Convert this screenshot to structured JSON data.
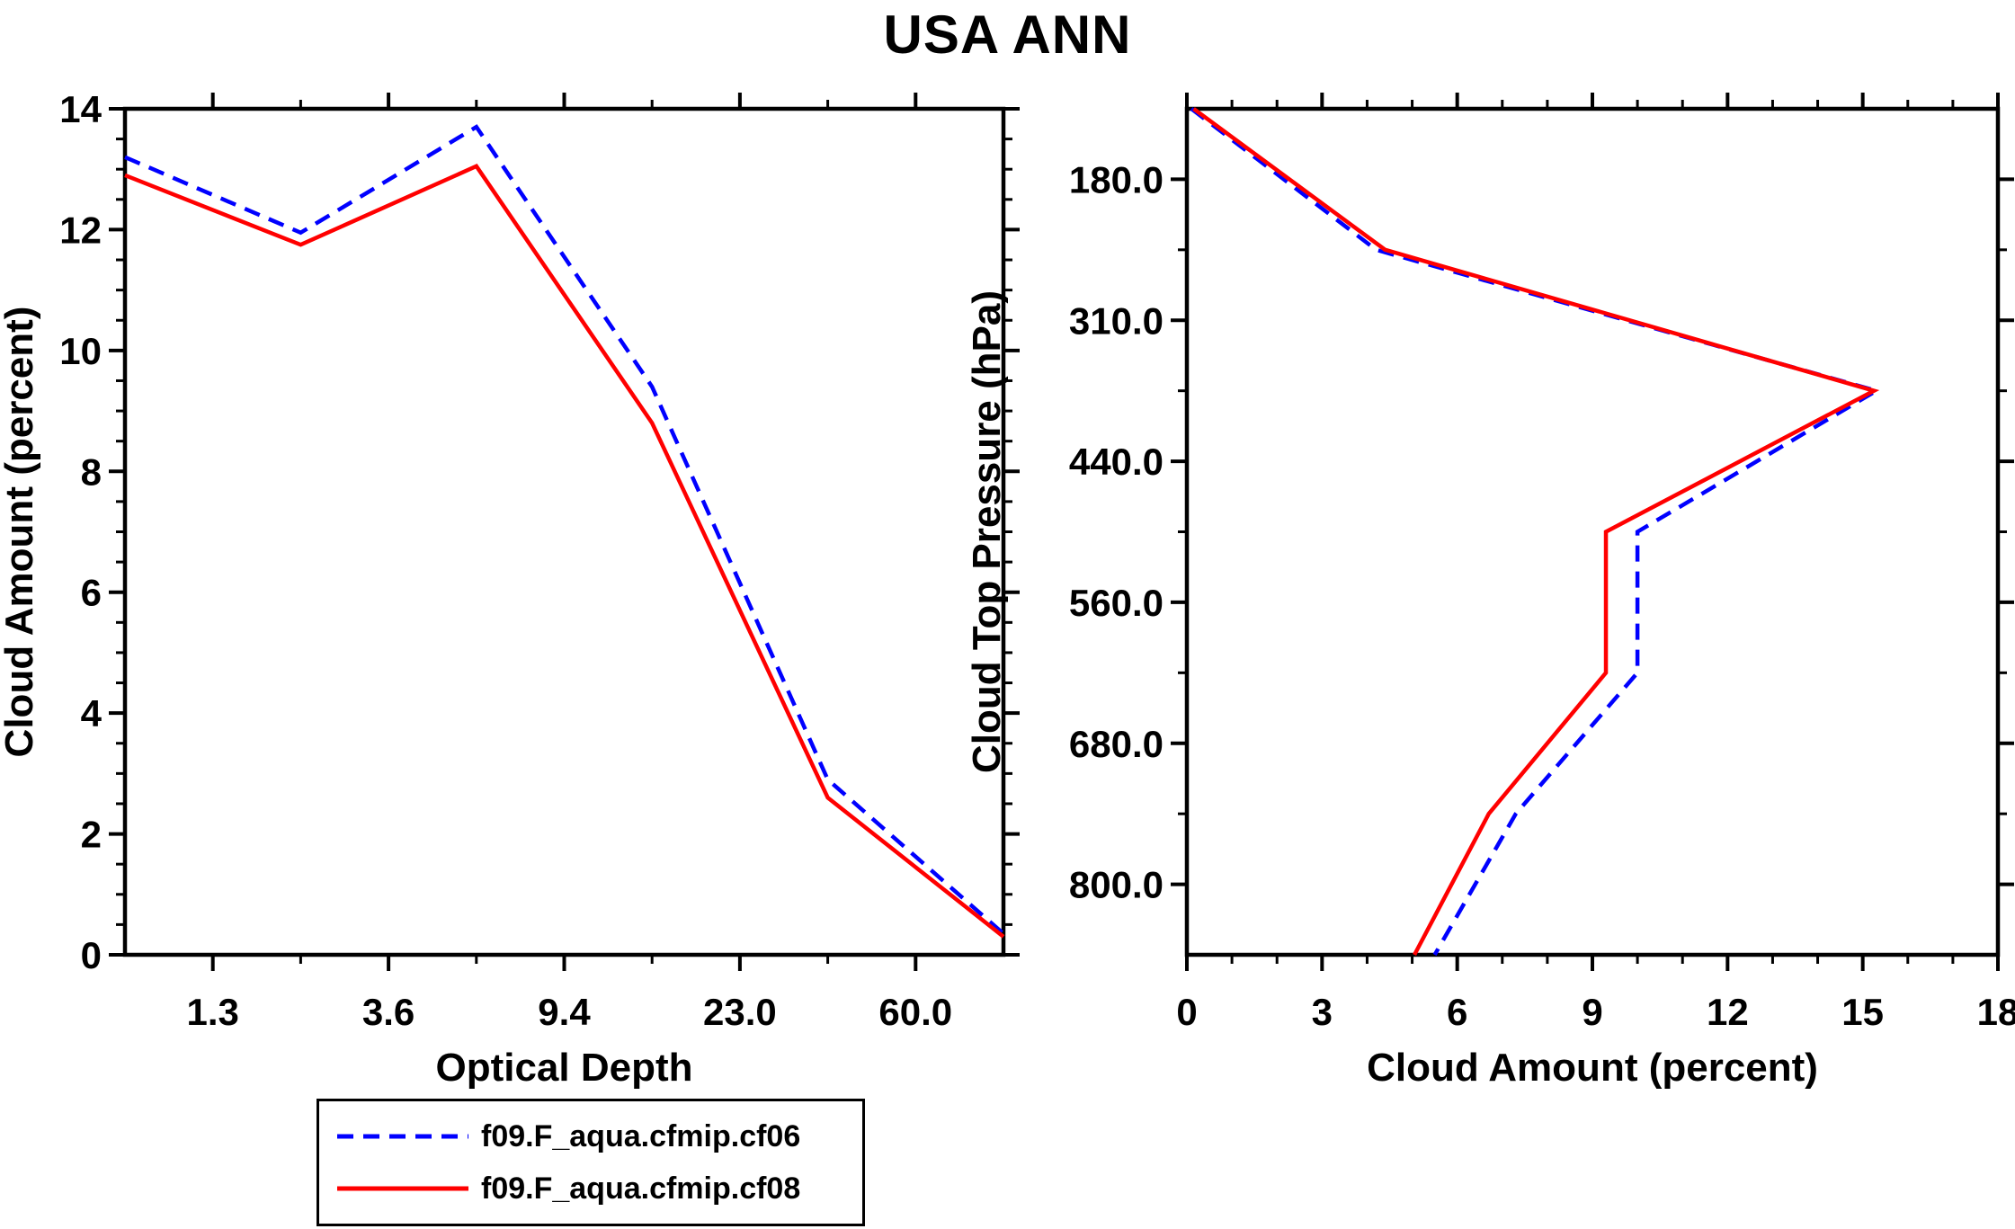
{
  "title": "USA ANN",
  "colors": {
    "background": "#ffffff",
    "axis": "#000000",
    "series_cf06": "#0000ff",
    "series_cf08": "#ff0000"
  },
  "legend": {
    "items": [
      {
        "label": "f09.F_aqua.cfmip.cf06",
        "color": "#0000ff",
        "style": "dashed"
      },
      {
        "label": "f09.F_aqua.cfmip.cf08",
        "color": "#ff0000",
        "style": "solid"
      }
    ]
  },
  "chart_data": [
    {
      "type": "line",
      "panel": "left",
      "title": "",
      "xlabel": "Optical Depth",
      "ylabel": "Cloud Amount (percent)",
      "x_tick_labels": [
        "1.3",
        "3.6",
        "9.4",
        "23.0",
        "60.0"
      ],
      "x_axis_note": "optical-depth bin boundaries as ticks; 6 data points at bin centers, evenly spaced across axis",
      "ylim": [
        0,
        14
      ],
      "y_major_ticks": [
        0,
        2,
        4,
        6,
        8,
        10,
        12,
        14
      ],
      "y_minor_step": 0.5,
      "grid": false,
      "legend_position": "below-left",
      "series": [
        {
          "name": "f09.F_aqua.cfmip.cf06",
          "color": "#0000ff",
          "style": "dashed",
          "values": [
            13.2,
            11.95,
            13.7,
            9.4,
            2.9,
            0.35
          ]
        },
        {
          "name": "f09.F_aqua.cfmip.cf08",
          "color": "#ff0000",
          "style": "solid",
          "values": [
            12.9,
            11.75,
            13.05,
            8.8,
            2.6,
            0.3
          ]
        }
      ]
    },
    {
      "type": "line",
      "panel": "right",
      "title": "",
      "xlabel": "Cloud Amount (percent)",
      "ylabel": "Cloud Top Pressure (hPa)",
      "xlim": [
        0,
        18
      ],
      "x_major_ticks": [
        0,
        3,
        6,
        9,
        12,
        15,
        18
      ],
      "x_minor_step": 1,
      "y_tick_labels": [
        "180.0",
        "310.0",
        "440.0",
        "560.0",
        "680.0",
        "800.0"
      ],
      "y_axis_note": "pressure increases downward; 7 data points at pressure-bin centers, evenly spaced top to bottom; ticks at bin boundaries",
      "pressure_bin_centers": [
        90,
        245,
        375,
        500,
        620,
        740,
        900
      ],
      "grid": false,
      "series": [
        {
          "name": "f09.F_aqua.cfmip.cf06",
          "color": "#0000ff",
          "style": "dashed",
          "values": [
            0.1,
            4.2,
            15.3,
            10.0,
            10.0,
            7.3,
            5.5
          ]
        },
        {
          "name": "f09.F_aqua.cfmip.cf08",
          "color": "#ff0000",
          "style": "solid",
          "values": [
            0.15,
            4.4,
            15.25,
            9.3,
            9.3,
            6.7,
            5.05
          ]
        }
      ]
    }
  ]
}
